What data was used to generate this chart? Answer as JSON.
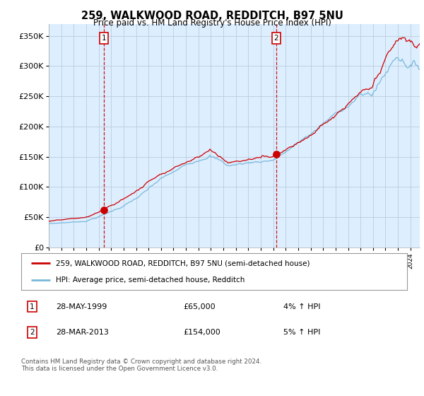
{
  "title": "259, WALKWOOD ROAD, REDDITCH, B97 5NU",
  "subtitle": "Price paid vs. HM Land Registry's House Price Index (HPI)",
  "legend_line1": "259, WALKWOOD ROAD, REDDITCH, B97 5NU (semi-detached house)",
  "legend_line2": "HPI: Average price, semi-detached house, Redditch",
  "transaction1_date": "28-MAY-1999",
  "transaction1_price": 65000,
  "transaction1_note": "4% ↑ HPI",
  "transaction2_date": "28-MAR-2013",
  "transaction2_price": 154000,
  "transaction2_note": "5% ↑ HPI",
  "footer": "Contains HM Land Registry data © Crown copyright and database right 2024.\nThis data is licensed under the Open Government Licence v3.0.",
  "hpi_color": "#7ab8d9",
  "price_color": "#cc0000",
  "marker_color": "#cc0000",
  "bg_color": "#ddeeff",
  "label_box_color": "#cc0000",
  "vline_color": "#cc0000",
  "grid_color": "#bbccdd",
  "ylim": [
    0,
    370000
  ],
  "yticks": [
    0,
    50000,
    100000,
    150000,
    200000,
    250000,
    300000,
    350000
  ],
  "ytick_labels": [
    "£0",
    "£50K",
    "£100K",
    "£150K",
    "£200K",
    "£250K",
    "£300K",
    "£350K"
  ],
  "start_year": 1995,
  "end_year": 2024,
  "transaction1_x": 1999.41,
  "transaction2_x": 2013.24
}
